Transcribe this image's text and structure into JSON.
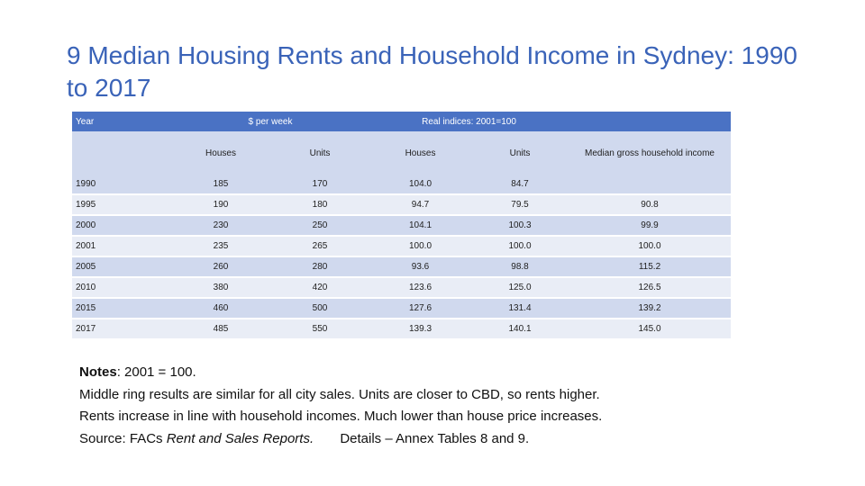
{
  "title": "9   Median Housing Rents and Household Income in Sydney: 1990 to 2017",
  "table": {
    "header_top": {
      "year": "Year",
      "dollars": "$ per week",
      "real": "Real indices: 2001=100"
    },
    "header_sub": [
      "Houses",
      "Units",
      "Houses",
      "Units",
      "Median gross   household income"
    ],
    "rows": [
      {
        "year": "1990",
        "houses": "185",
        "units": "170",
        "real_houses": "104.0",
        "real_units": "84.7",
        "income": ""
      },
      {
        "year": "1995",
        "houses": "190",
        "units": "180",
        "real_houses": "94.7",
        "real_units": "79.5",
        "income": "90.8"
      },
      {
        "year": "2000",
        "houses": "230",
        "units": "250",
        "real_houses": "104.1",
        "real_units": "100.3",
        "income": "99.9"
      },
      {
        "year": "2001",
        "houses": "235",
        "units": "265",
        "real_houses": "100.0",
        "real_units": "100.0",
        "income": "100.0"
      },
      {
        "year": "2005",
        "houses": "260",
        "units": "280",
        "real_houses": "93.6",
        "real_units": "98.8",
        "income": "115.2"
      },
      {
        "year": "2010",
        "houses": "380",
        "units": "420",
        "real_houses": "123.6",
        "real_units": "125.0",
        "income": "126.5"
      },
      {
        "year": "2015",
        "houses": "460",
        "units": "500",
        "real_houses": "127.6",
        "real_units": "131.4",
        "income": "139.2"
      },
      {
        "year": "2017",
        "houses": "485",
        "units": "550",
        "real_houses": "139.3",
        "real_units": "140.1",
        "income": "145.0"
      }
    ]
  },
  "notes": {
    "label": "Notes",
    "line1_rest": ":  2001 = 100.",
    "line2": "Middle ring results are similar for all city sales.  Units are closer to CBD, so rents higher.",
    "line3": "Rents increase in line with household incomes. Much lower than house price increases.",
    "source_prefix": "Source: FACs ",
    "source_italic": "Rent and Sales Reports.",
    "source_details": "       Details – Annex Tables 8 and 9."
  },
  "colors": {
    "title": "#3a63b8",
    "header_bg": "#4a72c4",
    "row_dark": "#d0d9ee",
    "row_light": "#e9edf6"
  }
}
